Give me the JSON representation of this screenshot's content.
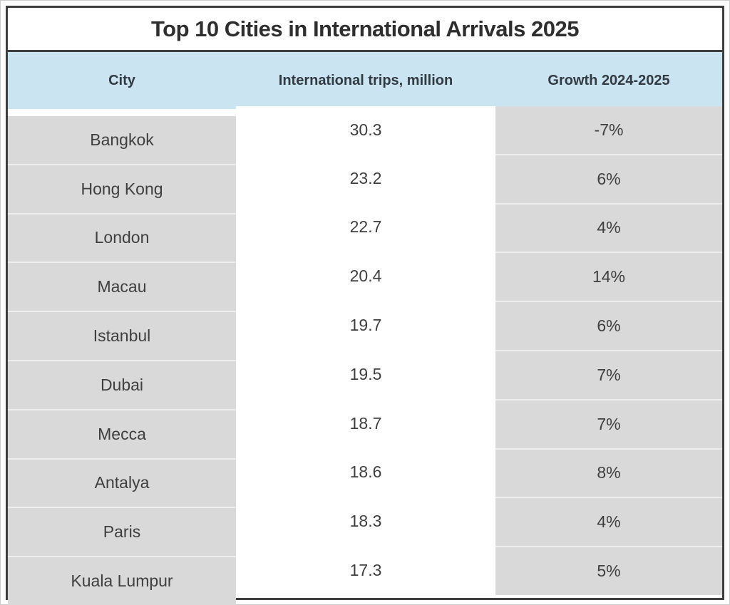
{
  "title": "Top 10 Cities in International Arrivals 2025",
  "table": {
    "columns": [
      "City",
      "International trips, million",
      "Growth 2024-2025"
    ],
    "rows": [
      {
        "city": "Bangkok",
        "trips": "30.3",
        "growth": "-7%"
      },
      {
        "city": "Hong Kong",
        "trips": "23.2",
        "growth": "6%"
      },
      {
        "city": "London",
        "trips": "22.7",
        "growth": "4%"
      },
      {
        "city": "Macau",
        "trips": "20.4",
        "growth": "14%"
      },
      {
        "city": "Istanbul",
        "trips": "19.7",
        "growth": "6%"
      },
      {
        "city": "Dubai",
        "trips": "19.5",
        "growth": "7%"
      },
      {
        "city": "Mecca",
        "trips": "18.7",
        "growth": "7%"
      },
      {
        "city": "Antalya",
        "trips": "18.6",
        "growth": "8%"
      },
      {
        "city": "Paris",
        "trips": "18.3",
        "growth": "4%"
      },
      {
        "city": "Kuala Lumpur",
        "trips": "17.3",
        "growth": "5%"
      }
    ]
  },
  "colors": {
    "header_bg": "#cbe4f1",
    "side_column_bg": "#d9d9d9",
    "middle_column_bg": "#ffffff",
    "border": "#3e3e3e",
    "title_text": "#2e2e2e",
    "cell_text": "#3f3f3f"
  },
  "chart_data": {
    "type": "table",
    "title": "Top 10 Cities in International Arrivals 2025",
    "columns": [
      "City",
      "International trips, million",
      "Growth 2024-2025"
    ],
    "categories": [
      "Bangkok",
      "Hong Kong",
      "London",
      "Macau",
      "Istanbul",
      "Dubai",
      "Mecca",
      "Antalya",
      "Paris",
      "Kuala Lumpur"
    ],
    "series": [
      {
        "name": "International trips, million",
        "values": [
          30.3,
          23.2,
          22.7,
          20.4,
          19.7,
          19.5,
          18.7,
          18.6,
          18.3,
          17.3
        ]
      },
      {
        "name": "Growth 2024-2025",
        "values": [
          "-7%",
          "6%",
          "4%",
          "14%",
          "6%",
          "7%",
          "7%",
          "8%",
          "4%",
          "5%"
        ]
      }
    ]
  }
}
